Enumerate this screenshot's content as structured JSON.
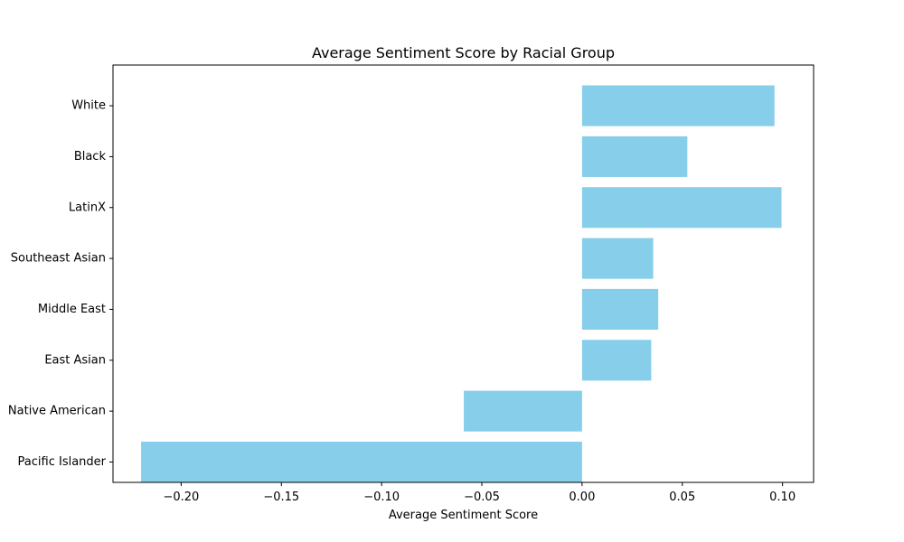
{
  "chart_data": {
    "type": "bar",
    "orientation": "horizontal",
    "title": "Average Sentiment Score by Racial Group",
    "xlabel": "Average Sentiment Score",
    "ylabel": "",
    "categories": [
      "White",
      "Black",
      "LatinX",
      "Southeast Asian",
      "Middle East",
      "East Asian",
      "Native American",
      "Pacific Islander"
    ],
    "values": [
      0.096,
      0.0525,
      0.0995,
      0.0355,
      0.038,
      0.0345,
      -0.059,
      -0.22
    ],
    "xlim": [
      -0.234,
      0.1155
    ],
    "xticks": [
      -0.2,
      -0.15,
      -0.1,
      -0.05,
      0.0,
      0.05,
      0.1
    ],
    "xtick_labels": [
      "−0.20",
      "−0.15",
      "−0.10",
      "−0.05",
      "0.00",
      "0.05",
      "0.10"
    ],
    "bar_color": "#87ceeb",
    "grid": false,
    "legend": "none"
  }
}
